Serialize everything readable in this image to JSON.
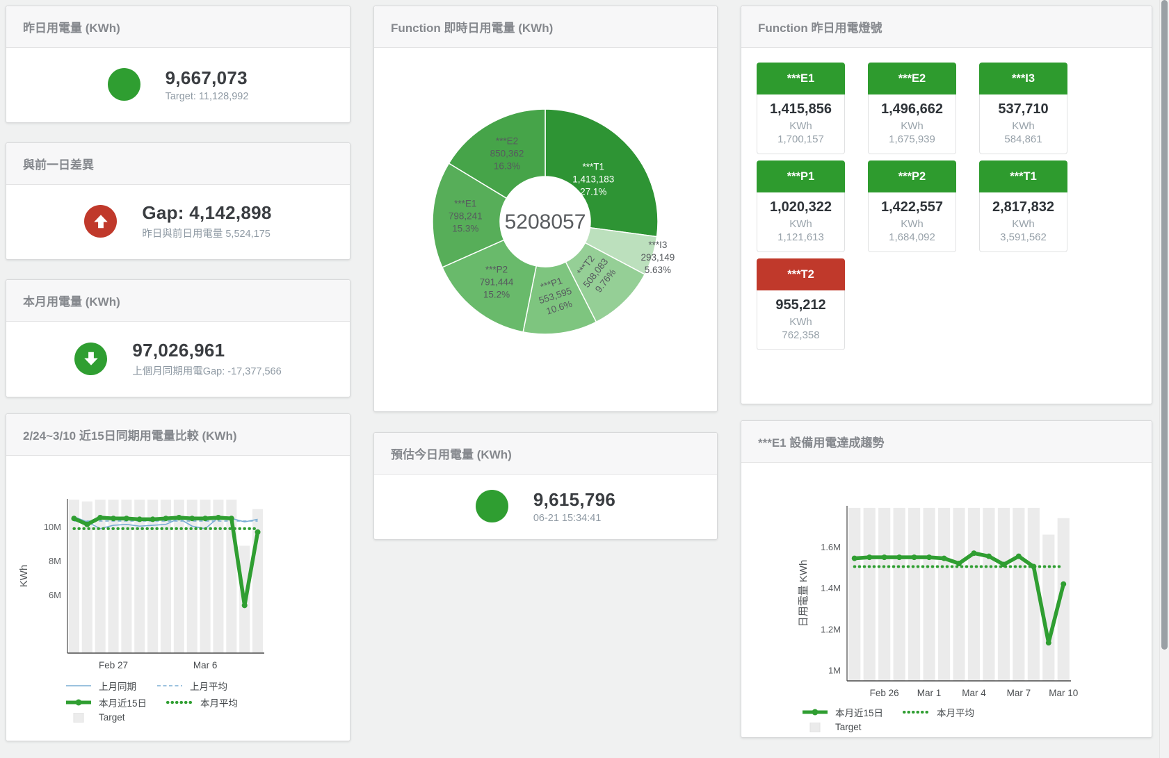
{
  "colors": {
    "green": "#2f9e31",
    "red": "#c0392b",
    "blue": "#7aadd4",
    "target_gray": "#ebebeb",
    "tile_green": "#2e9b2e",
    "tile_red": "#c0392b"
  },
  "panels": {
    "yesterday": {
      "title": "昨日用電量 (KWh)",
      "value": "9,667,073",
      "subtext": "Target: 11,128,992",
      "status_color": "#2f9e31"
    },
    "gap_prev_day": {
      "title": "與前一日差異",
      "value": "Gap: 4,142,898",
      "subtext": "昨日與前日用電量 5,524,175",
      "status_color": "#c0392b",
      "arrow": "up"
    },
    "month": {
      "title": "本月用電量 (KWh)",
      "value": "97,026,961",
      "subtext": "上個月同期用電Gap: -17,377,566",
      "status_color": "#2f9e31",
      "arrow": "down"
    },
    "donut": {
      "title": "Function 即時日用電量 (KWh)"
    },
    "lights": {
      "title": "Function 昨日用電燈號",
      "unit": "KWh",
      "tiles": [
        {
          "label": "***E1",
          "value": "1,415,856",
          "unit": "KWh",
          "target": "1,700,157",
          "status": "green"
        },
        {
          "label": "***E2",
          "value": "1,496,662",
          "unit": "KWh",
          "target": "1,675,939",
          "status": "green"
        },
        {
          "label": "***I3",
          "value": "537,710",
          "unit": "KWh",
          "target": "584,861",
          "status": "green"
        },
        {
          "label": "***P1",
          "value": "1,020,322",
          "unit": "KWh",
          "target": "1,121,613",
          "status": "green"
        },
        {
          "label": "***P2",
          "value": "1,422,557",
          "unit": "KWh",
          "target": "1,684,092",
          "status": "green"
        },
        {
          "label": "***T1",
          "value": "2,817,832",
          "unit": "KWh",
          "target": "3,591,562",
          "status": "green"
        },
        {
          "label": "***T2",
          "value": "955,212",
          "unit": "KWh",
          "target": "762,358",
          "status": "red"
        }
      ]
    },
    "compare15": {
      "title": "2/24~3/10 近15日同期用電量比較 (KWh)"
    },
    "today_estimate": {
      "title": "預估今日用電量 (KWh)",
      "value": "9,615,796",
      "subtext": "06-21 15:34:41",
      "status_color": "#2f9e31"
    },
    "e1_trend": {
      "title": "***E1 設備用電達成趨勢"
    }
  },
  "chart_data": [
    {
      "type": "pie",
      "title": "Function 即時日用電量 (KWh)",
      "center_total": "5208057",
      "legend_position": "none",
      "slices": [
        {
          "name": "***T1",
          "value": 1413183,
          "display": "1,413,183",
          "pct": "27.1%",
          "color": "#2e9434",
          "label_color": "#ffffff"
        },
        {
          "name": "***I3",
          "value": 293149,
          "display": "293,149",
          "pct": "5.63%",
          "color": "#bce0bd",
          "label_color": "#565a5e"
        },
        {
          "name": "***T2",
          "value": 508083,
          "display": "508,083",
          "pct": "9.76%",
          "color": "#95cf96",
          "label_color": "#565a5e"
        },
        {
          "name": "***P1",
          "value": 553595,
          "display": "553,595",
          "pct": "10.6%",
          "color": "#7ec57f",
          "label_color": "#565a5e"
        },
        {
          "name": "***P2",
          "value": 791444,
          "display": "791,444",
          "pct": "15.2%",
          "color": "#69ba6b",
          "label_color": "#565a5e"
        },
        {
          "name": "***E1",
          "value": 798241,
          "display": "798,241",
          "pct": "15.3%",
          "color": "#57ae59",
          "label_color": "#565a5e"
        },
        {
          "name": "***E2",
          "value": 850362,
          "display": "850,362",
          "pct": "16.3%",
          "color": "#46a449",
          "label_color": "#565a5e"
        }
      ]
    },
    {
      "type": "line",
      "title": "2/24~3/10 近15日同期用電量比較 (KWh)",
      "ylabel": "KWh",
      "n_points": 15,
      "y_range": [
        2600000,
        11650000
      ],
      "y_ticks": [
        {
          "value": 6000000,
          "label": "6M"
        },
        {
          "value": 8000000,
          "label": "8M"
        },
        {
          "value": 10000000,
          "label": "10M"
        }
      ],
      "x_labels": [
        {
          "index": 3,
          "label": "Feb 27"
        },
        {
          "index": 10,
          "label": "Mar 6"
        }
      ],
      "grid": false,
      "series": [
        {
          "name": "Target",
          "kind": "bar",
          "color": "#ececec",
          "values": [
            11600000,
            11500000,
            11600000,
            11600000,
            11600000,
            11600000,
            11600000,
            11600000,
            11600000,
            11600000,
            11600000,
            11600000,
            11600000,
            8900000,
            11050000
          ]
        },
        {
          "name": "上月同期",
          "kind": "line",
          "style": "solid",
          "color": "#7aadd4",
          "width": 1.6,
          "values": [
            10600000,
            10300000,
            9900000,
            10100000,
            10150000,
            10050000,
            10100000,
            10150000,
            10500000,
            10050000,
            9900000,
            10550000,
            10500000,
            10300000,
            10450000
          ]
        },
        {
          "name": "上月平均",
          "kind": "line",
          "style": "dashed",
          "color": "#7aadd4",
          "width": 1.6,
          "values": [
            10350000,
            10350000,
            10350000,
            10350000,
            10350000,
            10350000,
            10350000,
            10350000,
            10350000,
            10350000,
            10350000,
            10350000,
            10350000,
            10350000,
            10350000
          ]
        },
        {
          "name": "本月平均",
          "kind": "line",
          "style": "dotted",
          "color": "#2f9e31",
          "width": 4,
          "values": [
            9900000,
            9900000,
            9900000,
            9900000,
            9900000,
            9900000,
            9900000,
            9900000,
            9900000,
            9900000,
            9900000,
            9900000,
            9900000,
            9900000,
            9900000
          ]
        },
        {
          "name": "本月近15日",
          "kind": "line",
          "style": "solid",
          "color": "#2f9e31",
          "width": 5.5,
          "markers": true,
          "values": [
            10500000,
            10150000,
            10550000,
            10500000,
            10500000,
            10450000,
            10450000,
            10500000,
            10550000,
            10500000,
            10500000,
            10550000,
            10500000,
            5400000,
            9700000
          ]
        }
      ],
      "legend_rows": [
        [
          "上月同期",
          "上月平均"
        ],
        [
          "本月近15日",
          "本月平均"
        ],
        [
          "Target"
        ]
      ]
    },
    {
      "type": "line",
      "title": "***E1 設備用電達成趨勢",
      "ylabel": "日用電量 KWh",
      "n_points": 15,
      "y_range": [
        950000,
        1800000
      ],
      "y_ticks": [
        {
          "value": 1000000,
          "label": "1M"
        },
        {
          "value": 1200000,
          "label": "1.2M"
        },
        {
          "value": 1400000,
          "label": "1.4M"
        },
        {
          "value": 1600000,
          "label": "1.6M"
        }
      ],
      "x_labels": [
        {
          "index": 2,
          "label": "Feb 26"
        },
        {
          "index": 5,
          "label": "Mar 1"
        },
        {
          "index": 8,
          "label": "Mar 4"
        },
        {
          "index": 11,
          "label": "Mar 7"
        },
        {
          "index": 14,
          "label": "Mar 10"
        }
      ],
      "grid": false,
      "series": [
        {
          "name": "Target",
          "kind": "bar",
          "color": "#ebebeb",
          "values": [
            1790000,
            1790000,
            1790000,
            1790000,
            1790000,
            1790000,
            1790000,
            1790000,
            1790000,
            1790000,
            1790000,
            1790000,
            1790000,
            1660000,
            1740000
          ]
        },
        {
          "name": "本月平均",
          "kind": "line",
          "style": "dotted",
          "color": "#2f9e31",
          "width": 4,
          "values": [
            1505000,
            1505000,
            1505000,
            1505000,
            1505000,
            1505000,
            1505000,
            1505000,
            1505000,
            1505000,
            1505000,
            1505000,
            1505000,
            1505000,
            1505000
          ]
        },
        {
          "name": "本月近15日",
          "kind": "line",
          "style": "solid",
          "color": "#2f9e31",
          "width": 5.5,
          "markers": true,
          "values": [
            1545000,
            1550000,
            1550000,
            1550000,
            1550000,
            1550000,
            1545000,
            1520000,
            1570000,
            1555000,
            1515000,
            1555000,
            1505000,
            1135000,
            1420000
          ]
        }
      ],
      "legend_rows": [
        [
          "本月近15日",
          "本月平均"
        ],
        [
          "Target"
        ]
      ]
    }
  ]
}
